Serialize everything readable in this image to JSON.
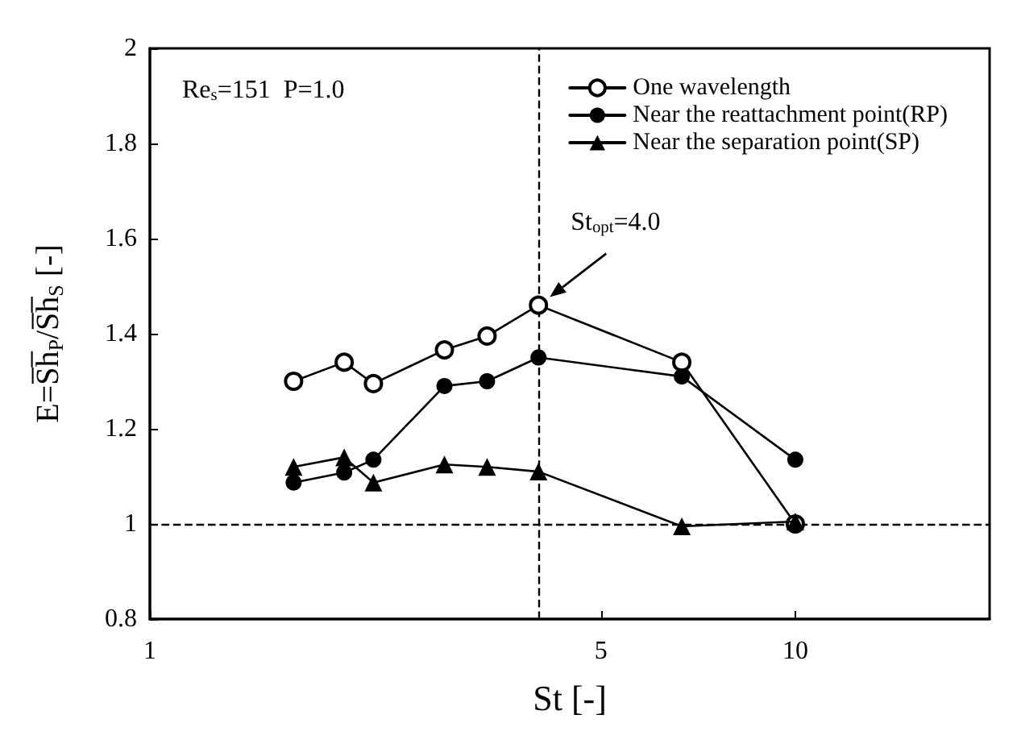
{
  "chart_data": {
    "type": "line",
    "xlabel": "St [-]",
    "ylabel": "E=S̅h̅$_{P}$/S̅h̅$_{S}$ [-]",
    "log": "x",
    "xlim": [
      1,
      20
    ],
    "xticks": [
      1,
      5,
      10
    ],
    "ylim": [
      0.8,
      2
    ],
    "yticks": [
      0.8,
      1,
      1.2,
      1.4,
      1.6,
      1.8,
      2
    ],
    "grid": false,
    "legend": "top right",
    "line_style": "solid",
    "x": [
      1.67,
      2,
      2.22,
      2.86,
      3.33,
      4,
      6.67,
      10
    ],
    "series": [
      {
        "name": "One wavelength",
        "color": "#000000",
        "marker": "circle",
        "values": [
          1.3,
          1.34,
          1.295,
          1.366,
          1.395,
          1.46,
          1.34,
          1.0
        ]
      },
      {
        "name": "Near the reattachment point(RP)",
        "color": "#000000",
        "marker": "circle",
        "values": [
          1.087,
          1.108,
          1.135,
          1.29,
          1.3,
          1.35,
          1.31,
          1.135
        ]
      },
      {
        "name": "Near the separation point(SP)",
        "color": "#000000",
        "marker": "triangle",
        "values": [
          1.12,
          1.14,
          1.087,
          1.125,
          1.12,
          1.11,
          0.995,
          1.005
        ]
      }
    ],
    "ref_lines": [
      {
        "axis": "x",
        "value": 4,
        "line_style": "dashed",
        "color": "#000000"
      },
      {
        "axis": "y",
        "value": 1,
        "line_style": "dashed",
        "color": "#000000"
      }
    ],
    "annotations": [
      "Re$_{s}$=151  P=1.0",
      {
        "text": "St$_{opt}$=4.0",
        "x": 4,
        "y": 1.46
      }
    ]
  }
}
